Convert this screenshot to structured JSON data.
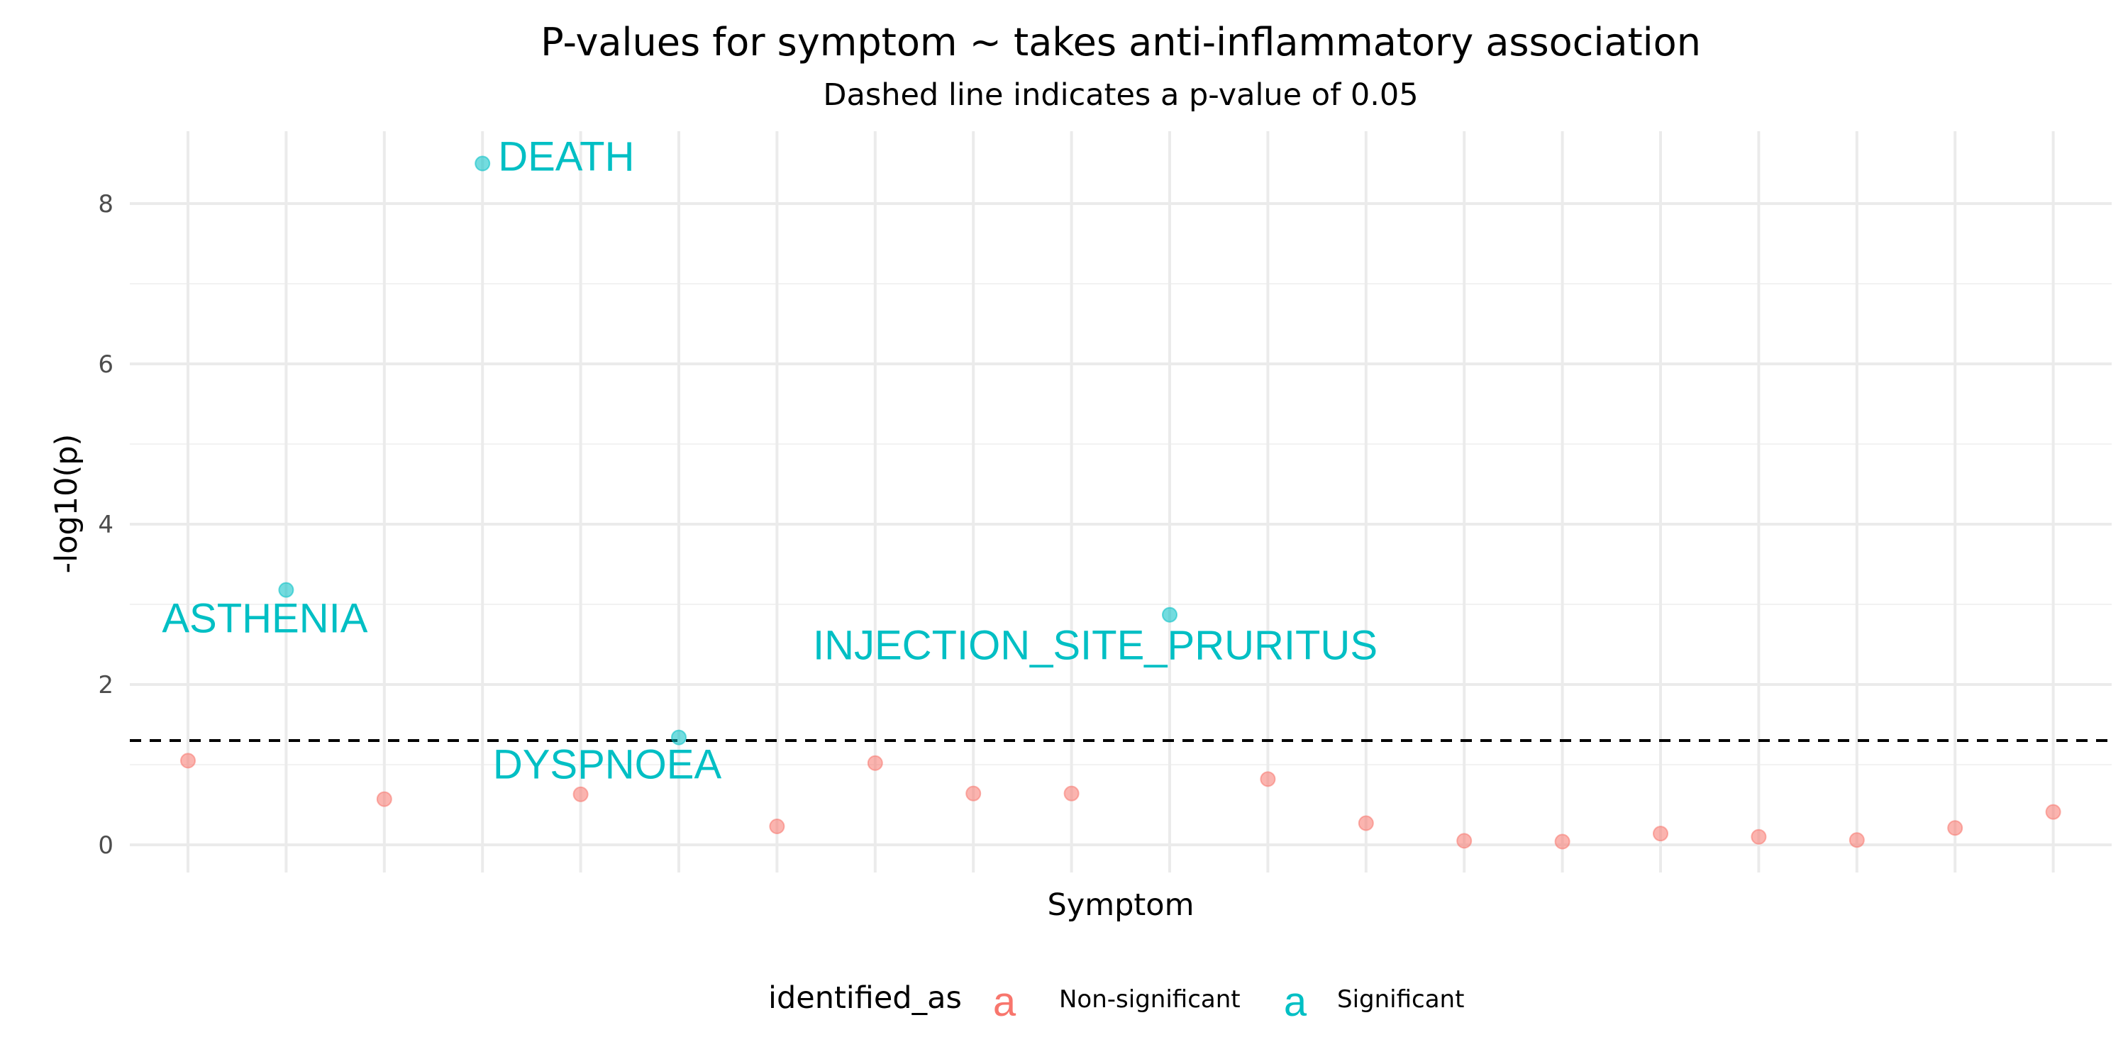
{
  "chart_data": {
    "type": "scatter",
    "title": "P-values for symptom ~ takes anti-inflammatory association",
    "subtitle": "Dashed line indicates a p-value of 0.05",
    "xlabel": "Symptom",
    "ylabel": "-log10(p)",
    "ylim": [
      -0.3,
      8.9
    ],
    "y_ticks": [
      0,
      2,
      4,
      6,
      8
    ],
    "x_tick_labels_shown": false,
    "grid": true,
    "threshold_line": {
      "p_value": 0.05,
      "y": 1.30103,
      "style": "dashed"
    },
    "legend": {
      "title": "identified_as",
      "placement": "bottom",
      "key_glyph": "a",
      "entries": [
        {
          "label": "Non-significant",
          "color": "#F8766D"
        },
        {
          "label": "Significant",
          "color": "#00BFC4"
        }
      ]
    },
    "point_labels": [
      "ASTHENIA",
      "DEATH",
      "DYSPNOEA",
      "INJECTION_SITE_PRURITUS"
    ],
    "points": [
      {
        "x": 1,
        "y": 1.05,
        "group": "Non-significant"
      },
      {
        "x": 2,
        "y": 3.18,
        "group": "Significant",
        "label": "ASTHENIA"
      },
      {
        "x": 3,
        "y": 0.57,
        "group": "Non-significant"
      },
      {
        "x": 4,
        "y": 8.5,
        "group": "Significant",
        "label": "DEATH"
      },
      {
        "x": 5,
        "y": 0.63,
        "group": "Non-significant"
      },
      {
        "x": 6,
        "y": 1.34,
        "group": "Significant",
        "label": "DYSPNOEA"
      },
      {
        "x": 7,
        "y": 0.23,
        "group": "Non-significant"
      },
      {
        "x": 8,
        "y": 1.02,
        "group": "Non-significant"
      },
      {
        "x": 9,
        "y": 0.64,
        "group": "Non-significant"
      },
      {
        "x": 10,
        "y": 0.64,
        "group": "Non-significant"
      },
      {
        "x": 11,
        "y": 2.87,
        "group": "Significant",
        "label": "INJECTION_SITE_PRURITUS"
      },
      {
        "x": 12,
        "y": 0.82,
        "group": "Non-significant"
      },
      {
        "x": 13,
        "y": 0.27,
        "group": "Non-significant"
      },
      {
        "x": 14,
        "y": 0.05,
        "group": "Non-significant"
      },
      {
        "x": 15,
        "y": 0.04,
        "group": "Non-significant"
      },
      {
        "x": 16,
        "y": 0.14,
        "group": "Non-significant"
      },
      {
        "x": 17,
        "y": 0.1,
        "group": "Non-significant"
      },
      {
        "x": 18,
        "y": 0.06,
        "group": "Non-significant"
      },
      {
        "x": 19,
        "y": 0.21,
        "group": "Non-significant"
      },
      {
        "x": 20,
        "y": 0.41,
        "group": "Non-significant"
      }
    ]
  }
}
